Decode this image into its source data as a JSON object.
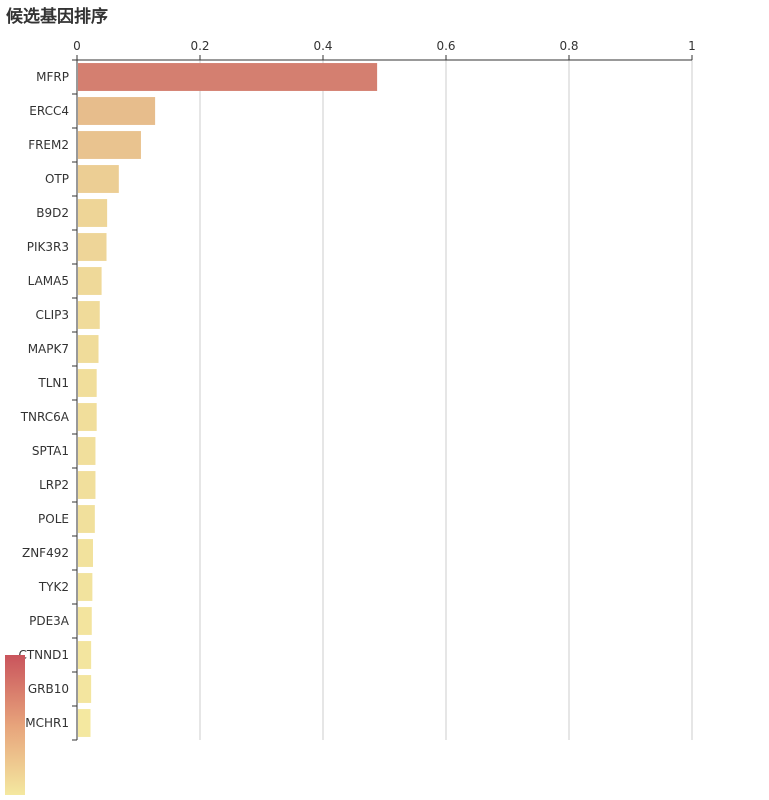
{
  "chart_data": {
    "type": "bar",
    "orientation": "horizontal",
    "title": "候选基因排序",
    "xlabel": "",
    "ylabel": "",
    "xlim": [
      0,
      1
    ],
    "x_ticks": [
      "0",
      "0.2",
      "0.4",
      "0.6",
      "0.8",
      "1"
    ],
    "grid": true,
    "categories": [
      "MFRP",
      "ERCC4",
      "FREM2",
      "OTP",
      "B9D2",
      "PIK3R3",
      "LAMA5",
      "CLIP3",
      "MAPK7",
      "TLN1",
      "TNRC6A",
      "SPTA1",
      "LRP2",
      "POLE",
      "ZNF492",
      "TYK2",
      "PDE3A",
      "CTNND1",
      "GRB10",
      "MCHR1"
    ],
    "values": [
      0.488,
      0.127,
      0.104,
      0.068,
      0.049,
      0.048,
      0.04,
      0.037,
      0.035,
      0.032,
      0.032,
      0.03,
      0.03,
      0.029,
      0.026,
      0.025,
      0.024,
      0.023,
      0.023,
      0.022
    ],
    "colors": {
      "high": "#d47f70",
      "low": "#f4e8a0",
      "axis": "#333333",
      "grid": "#cccccc"
    },
    "visual_map": {
      "orient": "vertical",
      "position": "bottom-left",
      "colors": [
        "#c9545c",
        "#e7a37b",
        "#f4e8a0"
      ]
    }
  }
}
